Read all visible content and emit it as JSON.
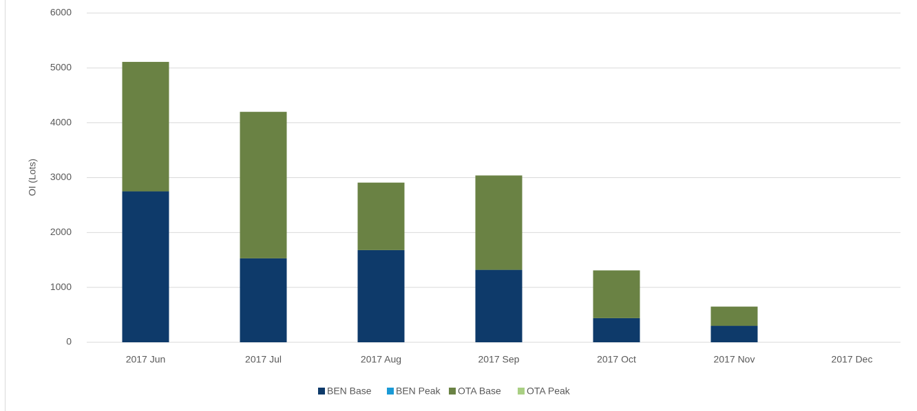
{
  "chart_data": {
    "type": "stacked_bar",
    "y_label": "OI (Lots)",
    "categories": [
      "2017 Jun",
      "2017 Jul",
      "2017 Aug",
      "2017 Sep",
      "2017 Oct",
      "2017 Nov",
      "2017 Dec"
    ],
    "series": [
      {
        "name": "BEN Base",
        "color": "#0e3a6a",
        "values": [
          2750,
          1530,
          1680,
          1320,
          440,
          300,
          0
        ]
      },
      {
        "name": "BEN Peak",
        "color": "#1a9ad6",
        "values": [
          0,
          0,
          0,
          0,
          0,
          0,
          0
        ]
      },
      {
        "name": "OTA Base",
        "color": "#6a8244",
        "values": [
          2360,
          2670,
          1230,
          1720,
          870,
          350,
          0
        ]
      },
      {
        "name": "OTA Peak",
        "color": "#a9cf83",
        "values": [
          0,
          0,
          0,
          0,
          0,
          0,
          0
        ]
      }
    ],
    "ylim": [
      0,
      6000
    ],
    "yticks": [
      0,
      1000,
      2000,
      3000,
      4000,
      5000,
      6000
    ],
    "grid": true,
    "legend": "bottom"
  }
}
